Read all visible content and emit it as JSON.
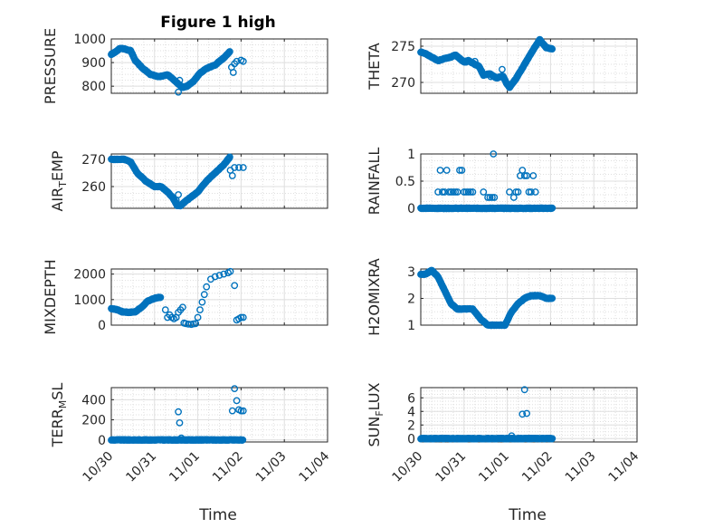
{
  "figure": {
    "title": "Figure 1 high"
  },
  "style": {
    "marker_color": "#0072bd",
    "grid_color": "#dfdfdf",
    "axis_color": "#262626"
  },
  "chart_data": [
    {
      "type": "scatter",
      "ylabel": "PRESSURE",
      "ylabel_sub": "",
      "ylabel_tail": "",
      "xlim": [
        0,
        5
      ],
      "xticks": [
        0,
        1,
        2,
        3,
        4,
        5
      ],
      "xticklabels": [
        "10/30",
        "10/31",
        "11/01",
        "11/02",
        "11/03",
        "11/04"
      ],
      "ylim": [
        770,
        1000
      ],
      "yticks": [
        800,
        900,
        1000
      ],
      "yticklabels": [
        "800",
        "900",
        "1000"
      ],
      "grid": true,
      "show_xticklabels": false,
      "anchors": [
        [
          0.0,
          935
        ],
        [
          0.1,
          945
        ],
        [
          0.2,
          960
        ],
        [
          0.3,
          958
        ],
        [
          0.45,
          950
        ],
        [
          0.55,
          910
        ],
        [
          0.7,
          880
        ],
        [
          0.9,
          850
        ],
        [
          1.1,
          840
        ],
        [
          1.3,
          848
        ],
        [
          1.4,
          835
        ],
        [
          1.55,
          810
        ],
        [
          1.65,
          795
        ],
        [
          1.75,
          800
        ],
        [
          1.9,
          820
        ],
        [
          2.05,
          855
        ],
        [
          2.2,
          875
        ],
        [
          2.4,
          890
        ],
        [
          2.6,
          920
        ],
        [
          2.75,
          948
        ]
      ],
      "points": [
        [
          1.55,
          775
        ],
        [
          1.58,
          825
        ],
        [
          2.78,
          880
        ],
        [
          2.82,
          858
        ],
        [
          2.85,
          895
        ],
        [
          2.9,
          905
        ],
        [
          3.0,
          910
        ],
        [
          3.05,
          905
        ]
      ]
    },
    {
      "type": "scatter",
      "ylabel": "THETA",
      "ylabel_sub": "",
      "ylabel_tail": "",
      "xlim": [
        0,
        5
      ],
      "xticks": [
        0,
        1,
        2,
        3,
        4,
        5
      ],
      "xticklabels": [
        "10/30",
        "10/31",
        "11/01",
        "11/02",
        "11/03",
        "11/04"
      ],
      "ylim": [
        268.5,
        276
      ],
      "yticks": [
        270,
        275
      ],
      "yticklabels": [
        "270",
        "275"
      ],
      "grid": true,
      "show_xticklabels": false,
      "anchors": [
        [
          0.0,
          274.2
        ],
        [
          0.1,
          274.0
        ],
        [
          0.25,
          273.5
        ],
        [
          0.4,
          273.0
        ],
        [
          0.55,
          273.3
        ],
        [
          0.7,
          273.5
        ],
        [
          0.8,
          273.8
        ],
        [
          0.9,
          273.3
        ],
        [
          1.0,
          272.8
        ],
        [
          1.1,
          273.0
        ],
        [
          1.25,
          272.5
        ],
        [
          1.35,
          272.2
        ],
        [
          1.45,
          271.0
        ],
        [
          1.6,
          271.2
        ],
        [
          1.75,
          270.6
        ],
        [
          1.9,
          270.9
        ],
        [
          1.97,
          270.0
        ],
        [
          2.05,
          269.3
        ],
        [
          2.2,
          270.5
        ],
        [
          2.4,
          272.5
        ],
        [
          2.6,
          274.5
        ],
        [
          2.75,
          275.9
        ],
        [
          2.9,
          274.8
        ],
        [
          3.05,
          274.6
        ]
      ],
      "points": [
        [
          1.25,
          272.9
        ],
        [
          1.3,
          272.4
        ],
        [
          1.05,
          272.8
        ],
        [
          1.62,
          270.8
        ],
        [
          1.88,
          271.8
        ]
      ]
    },
    {
      "type": "scatter",
      "ylabel": "AIR",
      "ylabel_sub": "T",
      "ylabel_tail": "EMP",
      "xlim": [
        0,
        5
      ],
      "xticks": [
        0,
        1,
        2,
        3,
        4,
        5
      ],
      "xticklabels": [
        "10/30",
        "10/31",
        "11/01",
        "11/02",
        "11/03",
        "11/04"
      ],
      "ylim": [
        252,
        272
      ],
      "yticks": [
        260,
        270
      ],
      "yticklabels": [
        "260",
        "270"
      ],
      "grid": true,
      "show_xticklabels": false,
      "anchors": [
        [
          0.0,
          270
        ],
        [
          0.1,
          270
        ],
        [
          0.3,
          270
        ],
        [
          0.45,
          269
        ],
        [
          0.6,
          265
        ],
        [
          0.8,
          262
        ],
        [
          1.0,
          260
        ],
        [
          1.15,
          260
        ],
        [
          1.3,
          258
        ],
        [
          1.42,
          256
        ],
        [
          1.52,
          253
        ],
        [
          1.6,
          253
        ],
        [
          1.75,
          255
        ],
        [
          2.0,
          258
        ],
        [
          2.2,
          262
        ],
        [
          2.4,
          265
        ],
        [
          2.6,
          268
        ],
        [
          2.75,
          271
        ]
      ],
      "points": [
        [
          1.5,
          255
        ],
        [
          1.55,
          257
        ],
        [
          2.75,
          266
        ],
        [
          2.8,
          264
        ],
        [
          2.85,
          267
        ],
        [
          2.95,
          267
        ],
        [
          3.05,
          267
        ]
      ]
    },
    {
      "type": "scatter",
      "ylabel": "RAINFALL",
      "ylabel_sub": "",
      "ylabel_tail": "",
      "xlim": [
        0,
        5
      ],
      "xticks": [
        0,
        1,
        2,
        3,
        4,
        5
      ],
      "xticklabels": [
        "10/30",
        "10/31",
        "11/01",
        "11/02",
        "11/03",
        "11/04"
      ],
      "ylim": [
        0,
        1
      ],
      "yticks": [
        0,
        0.5,
        1
      ],
      "yticklabels": [
        "0",
        "0.5",
        "1"
      ],
      "grid": true,
      "show_xticklabels": false,
      "anchors": [
        [
          0.0,
          0
        ],
        [
          3.05,
          0
        ]
      ],
      "points": [
        [
          0.4,
          0.3
        ],
        [
          0.45,
          0.7
        ],
        [
          0.5,
          0.3
        ],
        [
          0.55,
          0.3
        ],
        [
          0.6,
          0.7
        ],
        [
          0.65,
          0.3
        ],
        [
          0.7,
          0.3
        ],
        [
          0.75,
          0.3
        ],
        [
          0.8,
          0.3
        ],
        [
          0.85,
          0.3
        ],
        [
          0.9,
          0.7
        ],
        [
          0.95,
          0.7
        ],
        [
          1.0,
          0.3
        ],
        [
          1.05,
          0.3
        ],
        [
          1.1,
          0.3
        ],
        [
          1.15,
          0.3
        ],
        [
          1.2,
          0.3
        ],
        [
          1.45,
          0.3
        ],
        [
          1.55,
          0.2
        ],
        [
          1.6,
          0.2
        ],
        [
          1.65,
          0.2
        ],
        [
          1.68,
          1.0
        ],
        [
          1.7,
          0.2
        ],
        [
          2.05,
          0.3
        ],
        [
          2.15,
          0.2
        ],
        [
          2.2,
          0.3
        ],
        [
          2.25,
          0.3
        ],
        [
          2.3,
          0.6
        ],
        [
          2.35,
          0.7
        ],
        [
          2.4,
          0.6
        ],
        [
          2.45,
          0.6
        ],
        [
          2.5,
          0.3
        ],
        [
          2.55,
          0.3
        ],
        [
          2.6,
          0.6
        ],
        [
          2.65,
          0.3
        ]
      ]
    },
    {
      "type": "scatter",
      "ylabel": "MIXDEPTH",
      "ylabel_sub": "",
      "ylabel_tail": "",
      "xlim": [
        0,
        5
      ],
      "xticks": [
        0,
        1,
        2,
        3,
        4,
        5
      ],
      "xticklabels": [
        "10/30",
        "10/31",
        "11/01",
        "11/02",
        "11/03",
        "11/04"
      ],
      "ylim": [
        0,
        2200
      ],
      "yticks": [
        0,
        1000,
        2000
      ],
      "yticklabels": [
        "0",
        "1000",
        "2000"
      ],
      "grid": true,
      "show_xticklabels": false,
      "anchors": [
        [
          0.0,
          650
        ],
        [
          0.15,
          600
        ],
        [
          0.25,
          520
        ],
        [
          0.4,
          500
        ],
        [
          0.55,
          520
        ],
        [
          0.7,
          700
        ],
        [
          0.85,
          950
        ],
        [
          1.0,
          1050
        ],
        [
          1.15,
          1100
        ]
      ],
      "points": [
        [
          1.25,
          600
        ],
        [
          1.3,
          300
        ],
        [
          1.35,
          400
        ],
        [
          1.4,
          300
        ],
        [
          1.45,
          250
        ],
        [
          1.5,
          300
        ],
        [
          1.55,
          500
        ],
        [
          1.6,
          600
        ],
        [
          1.65,
          700
        ],
        [
          1.68,
          80
        ],
        [
          1.72,
          60
        ],
        [
          1.78,
          40
        ],
        [
          1.85,
          30
        ],
        [
          1.9,
          50
        ],
        [
          1.95,
          60
        ],
        [
          2.0,
          300
        ],
        [
          2.05,
          600
        ],
        [
          2.1,
          900
        ],
        [
          2.15,
          1200
        ],
        [
          2.2,
          1500
        ],
        [
          2.3,
          1800
        ],
        [
          2.4,
          1900
        ],
        [
          2.5,
          1950
        ],
        [
          2.6,
          2000
        ],
        [
          2.7,
          2050
        ],
        [
          2.75,
          2100
        ],
        [
          2.85,
          1550
        ],
        [
          2.9,
          200
        ],
        [
          2.95,
          250
        ],
        [
          3.0,
          300
        ],
        [
          3.05,
          300
        ]
      ]
    },
    {
      "type": "scatter",
      "ylabel": "H2OMIXRA",
      "ylabel_sub": "",
      "ylabel_tail": "",
      "xlim": [
        0,
        5
      ],
      "xticks": [
        0,
        1,
        2,
        3,
        4,
        5
      ],
      "xticklabels": [
        "10/30",
        "10/31",
        "11/01",
        "11/02",
        "11/03",
        "11/04"
      ],
      "ylim": [
        1,
        3.1
      ],
      "yticks": [
        1,
        2,
        3
      ],
      "yticklabels": [
        "1",
        "2",
        "3"
      ],
      "grid": true,
      "show_xticklabels": false,
      "anchors": [
        [
          0.0,
          2.9
        ],
        [
          0.1,
          2.9
        ],
        [
          0.25,
          3.05
        ],
        [
          0.4,
          2.8
        ],
        [
          0.55,
          2.3
        ],
        [
          0.7,
          1.8
        ],
        [
          0.85,
          1.6
        ],
        [
          1.0,
          1.6
        ],
        [
          1.2,
          1.6
        ],
        [
          1.4,
          1.2
        ],
        [
          1.55,
          1.0
        ],
        [
          1.7,
          1.0
        ],
        [
          1.95,
          1.0
        ],
        [
          2.1,
          1.5
        ],
        [
          2.25,
          1.8
        ],
        [
          2.4,
          2.0
        ],
        [
          2.55,
          2.1
        ],
        [
          2.75,
          2.1
        ],
        [
          2.9,
          2.0
        ],
        [
          3.05,
          2.0
        ]
      ],
      "points": []
    },
    {
      "type": "scatter",
      "ylabel": "TERR",
      "ylabel_sub": "M",
      "ylabel_tail": "SL",
      "xlim": [
        0,
        5
      ],
      "xticks": [
        0,
        1,
        2,
        3,
        4,
        5
      ],
      "xticklabels": [
        "10/30",
        "10/31",
        "11/01",
        "11/02",
        "11/03",
        "11/04"
      ],
      "ylim": [
        -20,
        520
      ],
      "yticks": [
        0,
        200,
        400
      ],
      "yticklabels": [
        "0",
        "200",
        "400"
      ],
      "grid": true,
      "show_xticklabels": true,
      "anchors": [
        [
          0.0,
          0
        ],
        [
          3.05,
          0
        ]
      ],
      "points": [
        [
          1.55,
          280
        ],
        [
          1.58,
          170
        ],
        [
          1.62,
          20
        ],
        [
          2.8,
          290
        ],
        [
          2.85,
          510
        ],
        [
          2.9,
          390
        ],
        [
          2.95,
          300
        ],
        [
          3.0,
          290
        ],
        [
          3.05,
          290
        ]
      ]
    },
    {
      "type": "scatter",
      "ylabel": "SUN",
      "ylabel_sub": "F",
      "ylabel_tail": "LUX",
      "xlim": [
        0,
        5
      ],
      "xticks": [
        0,
        1,
        2,
        3,
        4,
        5
      ],
      "xticklabels": [
        "10/30",
        "10/31",
        "11/01",
        "11/02",
        "11/03",
        "11/04"
      ],
      "ylim": [
        -0.5,
        7.5
      ],
      "yticks": [
        0,
        2,
        4,
        6
      ],
      "yticklabels": [
        "0",
        "2",
        "4",
        "6"
      ],
      "grid": true,
      "show_xticklabels": true,
      "anchors": [
        [
          0.0,
          0
        ],
        [
          3.05,
          0
        ]
      ],
      "points": [
        [
          2.1,
          0.4
        ],
        [
          2.35,
          3.6
        ],
        [
          2.4,
          7.2
        ],
        [
          2.45,
          3.7
        ]
      ]
    }
  ],
  "xlabels": [
    "Time",
    "Time"
  ]
}
